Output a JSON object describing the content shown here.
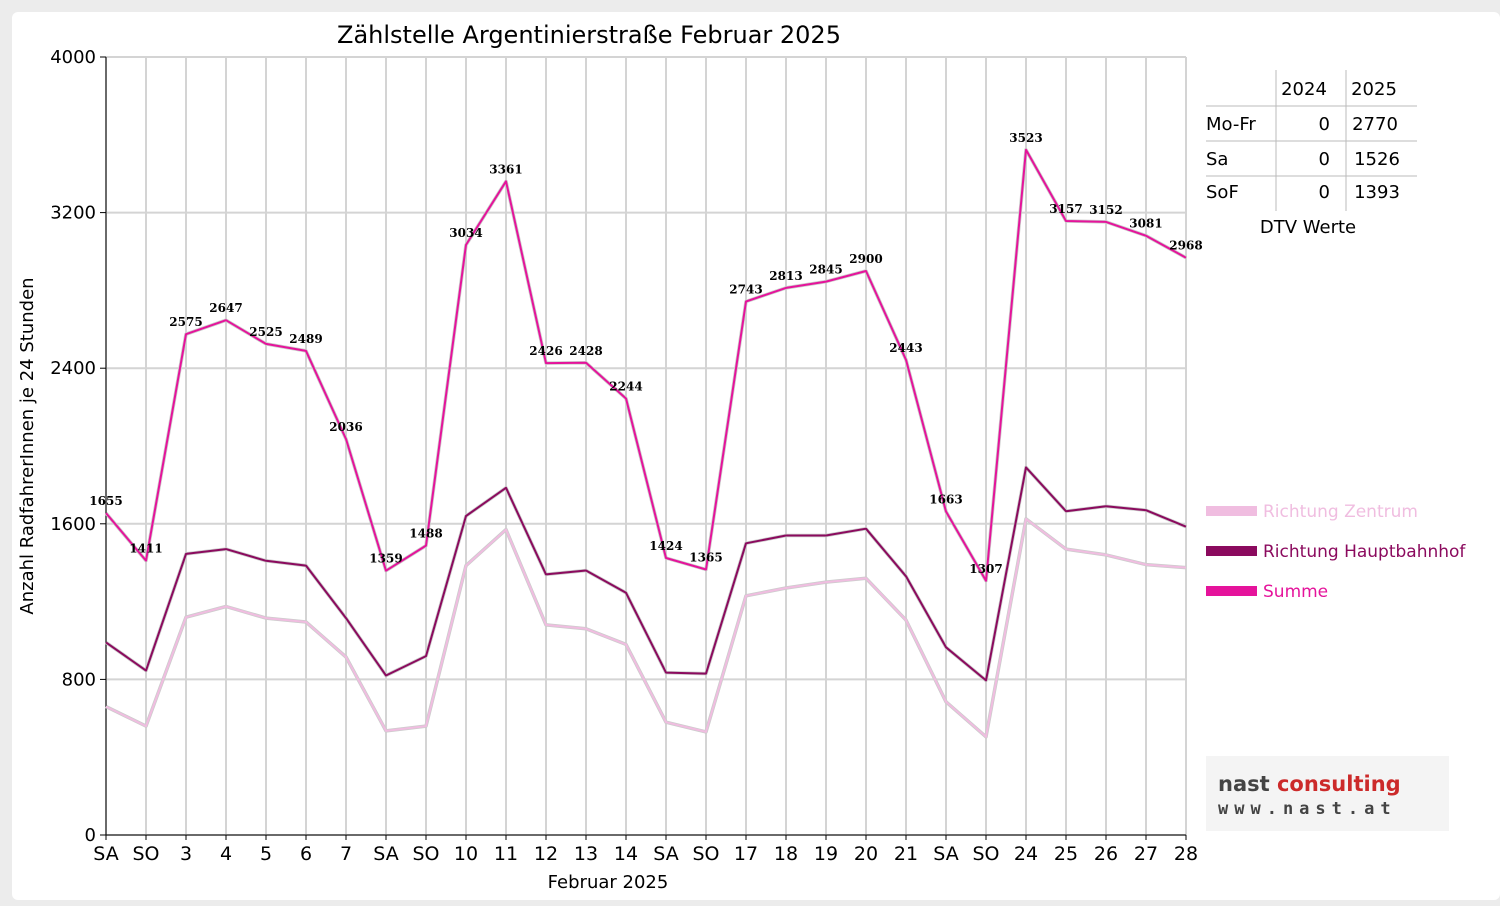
{
  "chart_data": {
    "type": "line",
    "title": "Zählstelle Argentinierstraße Februar 2025",
    "xlabel": "Februar 2025",
    "ylabel": "Anzahl RadfahrerInnen je 24 Stunden",
    "ylim": [
      0,
      4000
    ],
    "yticks": [
      "0",
      "800",
      "1600",
      "2400",
      "3200",
      "4000"
    ],
    "grid": true,
    "legend_position": "right",
    "categories": [
      "SA",
      "SO",
      "3",
      "4",
      "5",
      "6",
      "7",
      "SA",
      "SO",
      "10",
      "11",
      "12",
      "13",
      "14",
      "SA",
      "SO",
      "17",
      "18",
      "19",
      "20",
      "21",
      "SA",
      "SO",
      "24",
      "25",
      "26",
      "27",
      "28"
    ],
    "weekend_color": "#ff0000",
    "series": [
      {
        "name": "Richtung Zentrum",
        "color": "#f0bde0",
        "values": [
          660,
          560,
          1120,
          1175,
          1115,
          1095,
          915,
          535,
          560,
          1385,
          1570,
          1080,
          1060,
          980,
          580,
          530,
          1230,
          1270,
          1300,
          1320,
          1105,
          685,
          505,
          1625,
          1470,
          1440,
          1390,
          1375
        ]
      },
      {
        "name": "Richtung Hauptbahnhof",
        "color": "#8b0a5e",
        "values": [
          990,
          845,
          1445,
          1470,
          1410,
          1385,
          1115,
          820,
          920,
          1640,
          1785,
          1340,
          1360,
          1245,
          835,
          830,
          1500,
          1540,
          1540,
          1575,
          1330,
          965,
          795,
          1890,
          1665,
          1690,
          1670,
          1585
        ]
      },
      {
        "name": "Summe",
        "color": "#e5139b",
        "labeled": true,
        "values": [
          1655,
          1411,
          2575,
          2647,
          2525,
          2489,
          2036,
          1359,
          1488,
          3034,
          3361,
          2426,
          2428,
          2244,
          1424,
          1365,
          2743,
          2813,
          2845,
          2900,
          2443,
          1663,
          1307,
          3523,
          3157,
          3152,
          3081,
          2968
        ]
      }
    ]
  },
  "dtv_table": {
    "headers": [
      "",
      "2024",
      "2025"
    ],
    "rows": [
      {
        "label": "Mo-Fr",
        "v2024": "0",
        "v2025": "2770"
      },
      {
        "label": "Sa",
        "v2024": "0",
        "v2025": "1526"
      },
      {
        "label": "SoF",
        "v2024": "0",
        "v2025": "1393"
      }
    ],
    "caption": "DTV Werte"
  },
  "logo": {
    "line1_dark": "nast",
    "line1_red": " consulting",
    "line2": "www.nast.at"
  }
}
